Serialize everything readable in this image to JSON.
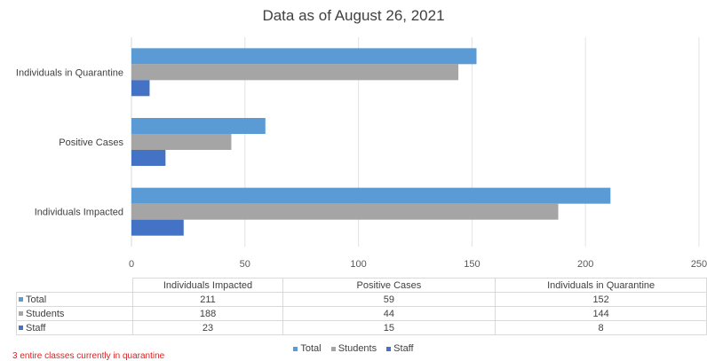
{
  "title": "Data as of August 26, 2021",
  "footnote": "3 entire classes currently in quarantine",
  "chart_data": {
    "type": "bar",
    "orientation": "horizontal",
    "title": "Data as of August 26, 2021",
    "categories": [
      "Individuals Impacted",
      "Positive Cases",
      "Individuals in Quarantine"
    ],
    "series": [
      {
        "name": "Total",
        "values": [
          211,
          59,
          152
        ],
        "color": "#5b9bd5"
      },
      {
        "name": "Students",
        "values": [
          188,
          44,
          144
        ],
        "color": "#a5a5a5"
      },
      {
        "name": "Staff",
        "values": [
          23,
          15,
          8
        ],
        "color": "#4472c4"
      }
    ],
    "xlim": [
      0,
      250
    ],
    "xticks": [
      "0",
      "50",
      "100",
      "150",
      "200",
      "250"
    ],
    "grid": true,
    "legend": "bottom",
    "data_table": true
  }
}
